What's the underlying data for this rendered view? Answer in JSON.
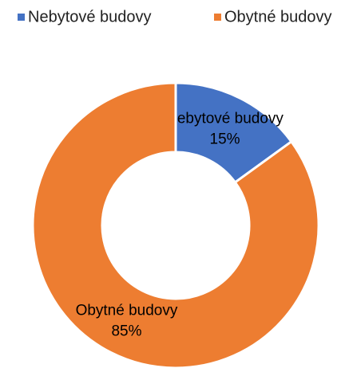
{
  "chart_data": {
    "type": "donut",
    "categories": [
      "Nebytové budovy",
      "Obytné budovy"
    ],
    "values": [
      15,
      85
    ],
    "value_labels": [
      "15%",
      "85%"
    ],
    "colors": [
      "#4472c4",
      "#ed7d31"
    ],
    "legend": "top"
  }
}
